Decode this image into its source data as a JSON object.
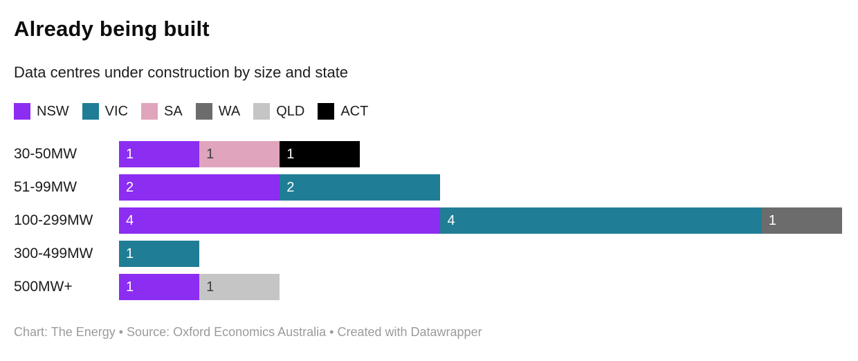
{
  "header": {
    "title": "Already being built",
    "subtitle": "Data centres under construction by size and state"
  },
  "legend": {
    "items": [
      {
        "label": "NSW",
        "color": "#8c2df2"
      },
      {
        "label": "VIC",
        "color": "#1f7e96"
      },
      {
        "label": "SA",
        "color": "#e0a4bc"
      },
      {
        "label": "WA",
        "color": "#6c6c6c"
      },
      {
        "label": "QLD",
        "color": "#c5c5c5"
      },
      {
        "label": "ACT",
        "color": "#000000"
      }
    ]
  },
  "chart_data": {
    "type": "bar",
    "orientation": "horizontal",
    "stacked": true,
    "title": "Already being built",
    "subtitle": "Data centres under construction by size and state",
    "categories": [
      "30-50MW",
      "51-99MW",
      "100-299MW",
      "300-499MW",
      "500MW+"
    ],
    "series": [
      {
        "name": "NSW",
        "color": "#8c2df2",
        "value_label_color": "#ffffff",
        "values": [
          1,
          2,
          4,
          0,
          1
        ]
      },
      {
        "name": "VIC",
        "color": "#1f7e96",
        "value_label_color": "#ffffff",
        "values": [
          0,
          2,
          4,
          1,
          0
        ]
      },
      {
        "name": "SA",
        "color": "#e0a4bc",
        "value_label_color": "#3c3c3c",
        "values": [
          1,
          0,
          0,
          0,
          0
        ]
      },
      {
        "name": "WA",
        "color": "#6c6c6c",
        "value_label_color": "#ffffff",
        "values": [
          0,
          0,
          1,
          0,
          0
        ]
      },
      {
        "name": "QLD",
        "color": "#c5c5c5",
        "value_label_color": "#3c3c3c",
        "values": [
          0,
          0,
          0,
          0,
          1
        ]
      },
      {
        "name": "ACT",
        "color": "#000000",
        "value_label_color": "#ffffff",
        "values": [
          1,
          0,
          0,
          0,
          0
        ]
      }
    ],
    "xlim": [
      0,
      9
    ],
    "grid": false,
    "value_labels": "inside-start",
    "legend_position": "top"
  },
  "footer": {
    "text": "Chart: The Energy • Source: Oxford Economics Australia • Created with Datawrapper"
  }
}
